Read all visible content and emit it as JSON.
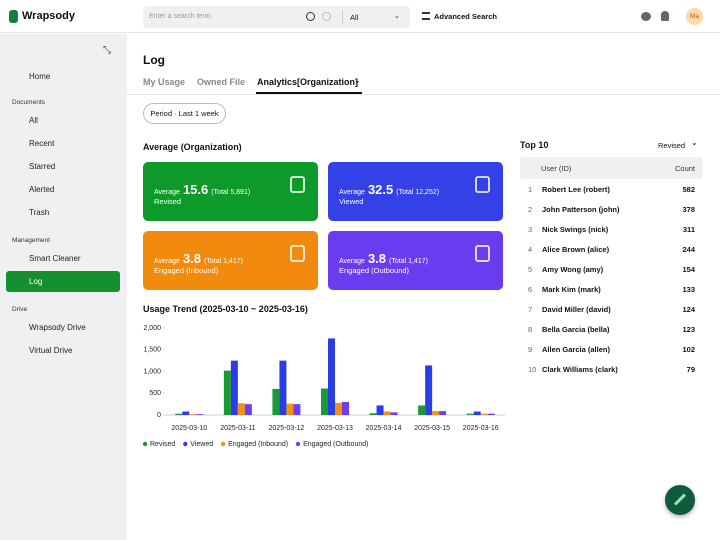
{
  "header": {
    "logo": "Wrapsody",
    "search_placeholder": "Enter a search term.",
    "scope": "All",
    "advanced_search": "Advanced Search",
    "avatar": "Ma"
  },
  "sidebar": {
    "home": "Home",
    "sections": [
      {
        "title": "Documents",
        "items": [
          "All",
          "Recent",
          "Starred",
          "Alerted",
          "Trash"
        ]
      },
      {
        "title": "Management",
        "items": [
          "Smart Cleaner",
          "Log"
        ]
      },
      {
        "title": "Drive",
        "items": [
          "Wrapsody Drive",
          "Virtual Drive"
        ]
      }
    ]
  },
  "page": {
    "title": "Log",
    "tabs": [
      "My Usage",
      "Owned File",
      "Analytics[Organization]"
    ],
    "period": "Period · Last 1 week",
    "average_title": "Average (Organization)",
    "cards": [
      {
        "prefix": "Average",
        "value": "15.6",
        "total": "(Total 5,891)",
        "label": "Revised"
      },
      {
        "prefix": "Average",
        "value": "32.5",
        "total": "(Total 12,252)",
        "label": "Viewed"
      },
      {
        "prefix": "Average",
        "value": "3.8",
        "total": "(Total 1,417)",
        "label": "Engaged (Inbound)"
      },
      {
        "prefix": "Average",
        "value": "3.8",
        "total": "(Total 1,417)",
        "label": "Engaged (Outbound)"
      }
    ],
    "top10": {
      "title": "Top 10",
      "sort": "Revised",
      "columns": [
        "User (ID)",
        "Count"
      ],
      "rows": [
        [
          1,
          "Robert Lee (robert)",
          582
        ],
        [
          2,
          "John Patterson (john)",
          378
        ],
        [
          3,
          "Nick Swings (nick)",
          311
        ],
        [
          4,
          "Alice Brown (alice)",
          244
        ],
        [
          5,
          "Amy Wong (amy)",
          154
        ],
        [
          6,
          "Mark Kim (mark)",
          133
        ],
        [
          7,
          "David Miller (david)",
          124
        ],
        [
          8,
          "Bella Garcia (bella)",
          123
        ],
        [
          9,
          "Allen Garcia (allen)",
          102
        ],
        [
          10,
          "Clark Williams (clark)",
          79
        ]
      ]
    }
  },
  "chart_data": {
    "type": "bar",
    "title": "Usage Trend (2025-03-10 ~ 2025-03-16)",
    "categories": [
      "2025-03-10",
      "2025-03-11",
      "2025-03-12",
      "2025-03-13",
      "2025-03-14",
      "2025-03-15",
      "2025-03-16"
    ],
    "series": [
      {
        "name": "Revised",
        "color": "#1a9a35",
        "values": [
          30,
          1020,
          600,
          610,
          40,
          220,
          30
        ]
      },
      {
        "name": "Viewed",
        "color": "#2b3de6",
        "values": [
          80,
          1250,
          1250,
          1760,
          220,
          1140,
          80
        ]
      },
      {
        "name": "Engaged (Inbound)",
        "color": "#ee9312",
        "values": [
          20,
          270,
          260,
          280,
          80,
          90,
          30
        ]
      },
      {
        "name": "Engaged (Outbound)",
        "color": "#6b3fef",
        "values": [
          20,
          250,
          250,
          300,
          60,
          90,
          30
        ]
      }
    ],
    "ylim": [
      0,
      2000
    ],
    "yticks": [
      0,
      500,
      {
        "value": 1000,
        "label": "1,000"
      },
      {
        "value": 1500,
        "label": "1,500"
      },
      {
        "value": 2000,
        "label": "2,000"
      }
    ],
    "grid": false,
    "legend": "bottom"
  }
}
